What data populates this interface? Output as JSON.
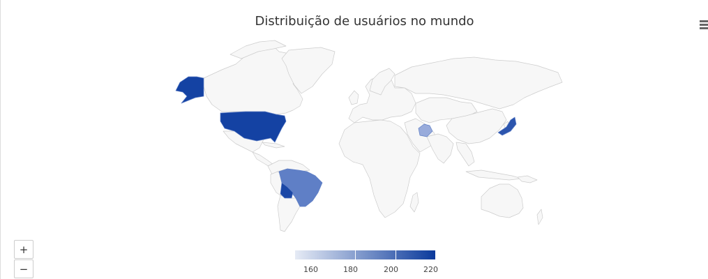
{
  "title": "Distribuição de usuários no mundo",
  "icons": {
    "menu": "hamburger-menu-icon"
  },
  "zoom": {
    "in_label": "+",
    "out_label": "−"
  },
  "colors": {
    "land": "#f7f7f7",
    "border": "#cccccc",
    "scale_min": "#e6ebf5",
    "scale_max": "#0b3a9c"
  },
  "legend": {
    "min": 150,
    "max": 220,
    "ticks": [
      {
        "value": 160,
        "label": "160"
      },
      {
        "value": 180,
        "label": "180"
      },
      {
        "value": 200,
        "label": "200"
      },
      {
        "value": 220,
        "label": "220"
      }
    ]
  },
  "highlighted_regions": [
    {
      "id": "us",
      "value": 220,
      "color": "#1442a3"
    },
    {
      "id": "br",
      "value": 196,
      "color": "#5f7fc6"
    },
    {
      "id": "bo",
      "value": 218,
      "color": "#1b47a6"
    },
    {
      "id": "af",
      "value": 181,
      "color": "#98abdb"
    },
    {
      "id": "jp",
      "value": 212,
      "color": "#2c55ae"
    }
  ]
}
